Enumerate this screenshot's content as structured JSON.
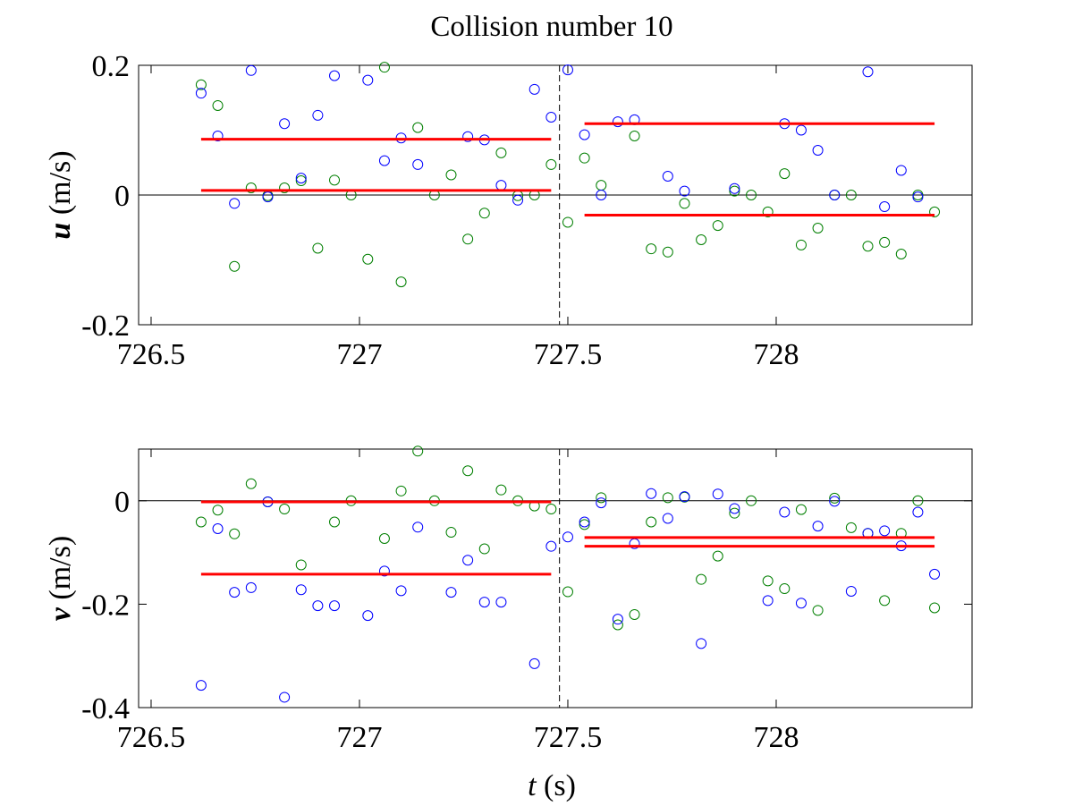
{
  "chart_data": {
    "type": "scatter",
    "title": "Collision number 10",
    "xlabel_var": "t",
    "xlabel_unit": " (s)",
    "vline_x": 727.48,
    "colors": {
      "series1": "#0000ff",
      "series2": "#007f00",
      "fit": "#ff0000",
      "axes": "#000000"
    },
    "panels": [
      {
        "ylabel_var": "u",
        "ylabel_unit": " (m/s)",
        "xlim": [
          726.47,
          728.47
        ],
        "ylim": [
          -0.2,
          0.2
        ],
        "x_ticks": [
          726.5,
          727,
          727.5,
          728
        ],
        "x_tick_labels": [
          "726.5",
          "727",
          "727.5",
          "728"
        ],
        "y_ticks": [
          -0.2,
          0,
          0.2
        ],
        "y_tick_labels": [
          "-0.2",
          "0",
          "0.2"
        ],
        "zero_line": true,
        "blue": [
          [
            726.62,
            0.157
          ],
          [
            726.66,
            0.091
          ],
          [
            726.7,
            -0.013
          ],
          [
            726.74,
            0.192
          ],
          [
            726.78,
            -0.003
          ],
          [
            726.82,
            0.11
          ],
          [
            726.86,
            0.026
          ],
          [
            726.9,
            0.123
          ],
          [
            726.94,
            0.184
          ],
          [
            727.02,
            0.177
          ],
          [
            727.06,
            0.053
          ],
          [
            727.1,
            0.088
          ],
          [
            727.14,
            0.047
          ],
          [
            727.26,
            0.09
          ],
          [
            727.3,
            0.085
          ],
          [
            727.34,
            0.015
          ],
          [
            727.38,
            -0.008
          ],
          [
            727.42,
            0.163
          ],
          [
            727.46,
            0.12
          ],
          [
            727.5,
            0.193
          ],
          [
            727.54,
            0.093
          ],
          [
            727.58,
            0.0
          ],
          [
            727.62,
            0.113
          ],
          [
            727.66,
            0.116
          ],
          [
            727.74,
            0.029
          ],
          [
            727.78,
            0.006
          ],
          [
            727.9,
            0.01
          ],
          [
            728.02,
            0.11
          ],
          [
            728.06,
            0.1
          ],
          [
            728.1,
            0.069
          ],
          [
            728.14,
            0.0
          ],
          [
            728.22,
            0.19
          ],
          [
            728.26,
            -0.018
          ],
          [
            728.3,
            0.038
          ],
          [
            728.34,
            -0.003
          ]
        ],
        "green": [
          [
            726.62,
            0.17
          ],
          [
            726.66,
            0.138
          ],
          [
            726.7,
            -0.11
          ],
          [
            726.74,
            0.011
          ],
          [
            726.78,
            -0.001
          ],
          [
            726.82,
            0.011
          ],
          [
            726.86,
            0.022
          ],
          [
            726.9,
            -0.082
          ],
          [
            726.94,
            0.023
          ],
          [
            726.98,
            0.0
          ],
          [
            727.02,
            -0.099
          ],
          [
            727.06,
            0.197
          ],
          [
            727.1,
            -0.134
          ],
          [
            727.14,
            0.104
          ],
          [
            727.18,
            0.0
          ],
          [
            727.22,
            0.031
          ],
          [
            727.26,
            -0.068
          ],
          [
            727.3,
            -0.028
          ],
          [
            727.34,
            0.065
          ],
          [
            727.38,
            -0.001
          ],
          [
            727.42,
            0.0
          ],
          [
            727.46,
            0.047
          ],
          [
            727.5,
            -0.042
          ],
          [
            727.54,
            0.057
          ],
          [
            727.58,
            0.015
          ],
          [
            727.66,
            0.091
          ],
          [
            727.7,
            -0.083
          ],
          [
            727.74,
            -0.088
          ],
          [
            727.78,
            -0.013
          ],
          [
            727.82,
            -0.069
          ],
          [
            727.86,
            -0.047
          ],
          [
            727.9,
            0.006
          ],
          [
            727.94,
            0.0
          ],
          [
            727.98,
            -0.026
          ],
          [
            728.02,
            0.033
          ],
          [
            728.06,
            -0.077
          ],
          [
            728.1,
            -0.051
          ],
          [
            728.14,
            0.0
          ],
          [
            728.18,
            0.0
          ],
          [
            728.22,
            -0.079
          ],
          [
            728.26,
            -0.073
          ],
          [
            728.3,
            -0.091
          ],
          [
            728.34,
            0.0
          ],
          [
            728.38,
            -0.026
          ]
        ],
        "fit_lines": [
          [
            726.62,
            727.46,
            0.086
          ],
          [
            726.62,
            727.46,
            0.007
          ],
          [
            727.54,
            728.38,
            0.11
          ],
          [
            727.54,
            728.38,
            -0.031
          ]
        ]
      },
      {
        "ylabel_var": "v",
        "ylabel_unit": " (m/s)",
        "xlim": [
          726.47,
          728.47
        ],
        "ylim": [
          -0.4,
          0.1
        ],
        "x_ticks": [
          726.5,
          727,
          727.5,
          728
        ],
        "x_tick_labels": [
          "726.5",
          "727",
          "727.5",
          "728"
        ],
        "y_ticks": [
          -0.4,
          -0.2,
          0
        ],
        "y_tick_labels": [
          "-0.4",
          "-0.2",
          "0"
        ],
        "zero_line": true,
        "blue": [
          [
            726.62,
            -0.357
          ],
          [
            726.66,
            -0.054
          ],
          [
            726.7,
            -0.177
          ],
          [
            726.74,
            -0.168
          ],
          [
            726.78,
            -0.002
          ],
          [
            726.82,
            -0.38
          ],
          [
            726.86,
            -0.172
          ],
          [
            726.9,
            -0.203
          ],
          [
            726.94,
            -0.203
          ],
          [
            727.02,
            -0.222
          ],
          [
            727.06,
            -0.136
          ],
          [
            727.1,
            -0.174
          ],
          [
            727.14,
            -0.051
          ],
          [
            727.22,
            -0.177
          ],
          [
            727.26,
            -0.115
          ],
          [
            727.3,
            -0.196
          ],
          [
            727.34,
            -0.196
          ],
          [
            727.42,
            -0.315
          ],
          [
            727.46,
            -0.088
          ],
          [
            727.5,
            -0.07
          ],
          [
            727.54,
            -0.041
          ],
          [
            727.58,
            -0.004
          ],
          [
            727.62,
            -0.229
          ],
          [
            727.66,
            -0.083
          ],
          [
            727.7,
            0.014
          ],
          [
            727.74,
            -0.034
          ],
          [
            727.78,
            0.008
          ],
          [
            727.82,
            -0.276
          ],
          [
            727.86,
            0.013
          ],
          [
            727.9,
            -0.015
          ],
          [
            727.98,
            -0.193
          ],
          [
            728.02,
            -0.022
          ],
          [
            728.06,
            -0.198
          ],
          [
            728.1,
            -0.049
          ],
          [
            728.14,
            -0.001
          ],
          [
            728.18,
            -0.175
          ],
          [
            728.22,
            -0.063
          ],
          [
            728.26,
            -0.058
          ],
          [
            728.3,
            -0.087
          ],
          [
            728.34,
            -0.022
          ],
          [
            728.38,
            -0.142
          ]
        ],
        "green": [
          [
            726.62,
            -0.041
          ],
          [
            726.66,
            -0.018
          ],
          [
            726.7,
            -0.064
          ],
          [
            726.74,
            0.033
          ],
          [
            726.78,
            -0.002
          ],
          [
            726.82,
            -0.016
          ],
          [
            726.86,
            -0.124
          ],
          [
            726.94,
            -0.041
          ],
          [
            726.98,
            0.0
          ],
          [
            727.06,
            -0.073
          ],
          [
            727.1,
            0.019
          ],
          [
            727.14,
            0.096
          ],
          [
            727.18,
            0.0
          ],
          [
            727.22,
            -0.061
          ],
          [
            727.26,
            0.058
          ],
          [
            727.3,
            -0.093
          ],
          [
            727.34,
            0.021
          ],
          [
            727.38,
            0.0
          ],
          [
            727.42,
            -0.01
          ],
          [
            727.46,
            -0.016
          ],
          [
            727.5,
            -0.176
          ],
          [
            727.54,
            -0.046
          ],
          [
            727.58,
            0.006
          ],
          [
            727.62,
            -0.24
          ],
          [
            727.66,
            -0.22
          ],
          [
            727.7,
            -0.041
          ],
          [
            727.74,
            0.006
          ],
          [
            727.78,
            0.007
          ],
          [
            727.82,
            -0.152
          ],
          [
            727.86,
            -0.107
          ],
          [
            727.9,
            -0.024
          ],
          [
            727.94,
            0.0
          ],
          [
            727.98,
            -0.155
          ],
          [
            728.02,
            -0.17
          ],
          [
            728.06,
            -0.017
          ],
          [
            728.1,
            -0.212
          ],
          [
            728.14,
            0.005
          ],
          [
            728.18,
            -0.052
          ],
          [
            728.22,
            -0.063
          ],
          [
            728.26,
            -0.193
          ],
          [
            728.3,
            -0.063
          ],
          [
            728.34,
            0.0
          ],
          [
            728.38,
            -0.207
          ]
        ],
        "fit_lines": [
          [
            726.62,
            727.46,
            -0.002
          ],
          [
            726.62,
            727.46,
            -0.142
          ],
          [
            727.54,
            728.38,
            -0.071
          ],
          [
            727.54,
            728.38,
            -0.088
          ]
        ]
      }
    ]
  }
}
